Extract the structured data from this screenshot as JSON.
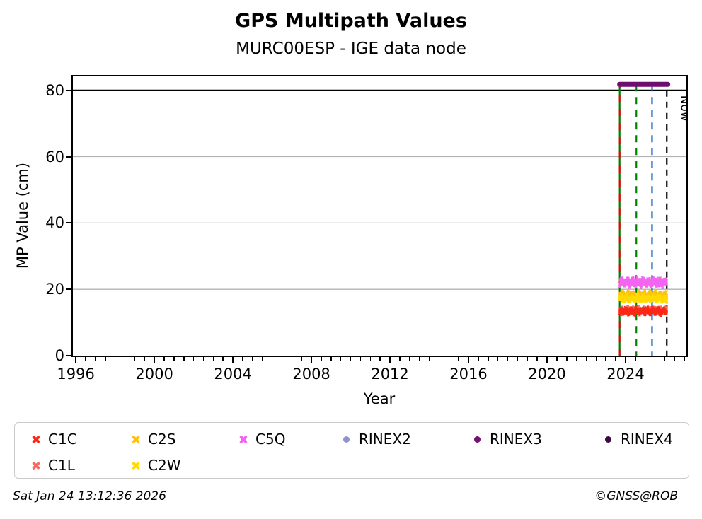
{
  "header": {
    "title": "GPS Multipath Values",
    "subtitle": "MURC00ESP - IGE data node"
  },
  "chart_data": {
    "type": "scatter",
    "title": "GPS Multipath Values",
    "subtitle": "MURC00ESP - IGE data node",
    "xlabel": "Year",
    "ylabel": "MP Value (cm)",
    "xlim": [
      1995.85,
      2027.1
    ],
    "ylim": [
      0,
      84.2
    ],
    "x_major_ticks": [
      1996,
      2000,
      2004,
      2008,
      2012,
      2016,
      2020,
      2024
    ],
    "x_minor_step": 0.5,
    "y_ticks": [
      0,
      20,
      40,
      60,
      80
    ],
    "grid_values": [
      20,
      40,
      60
    ],
    "grid_color": "#b3b3b3",
    "clip_line_value": 80,
    "legend_position": "below",
    "series": [
      {
        "name": "C1L",
        "color": "#fc685b",
        "marker": "x",
        "x_start": 2023.7,
        "x_end": 2026.1,
        "y_center": 13.8,
        "y_spread": 0.9,
        "n": 420,
        "seed": 11
      },
      {
        "name": "C1C",
        "color": "#fb2818",
        "marker": "x",
        "x_start": 2023.7,
        "x_end": 2026.1,
        "y_center": 13.4,
        "y_spread": 1.1,
        "n": 520,
        "seed": 7
      },
      {
        "name": "C2S",
        "color": "#fec10d",
        "marker": "x",
        "x_start": 2023.7,
        "x_end": 2026.1,
        "y_center": 18.3,
        "y_spread": 1.1,
        "n": 520,
        "seed": 23
      },
      {
        "name": "C2W",
        "color": "#ffd900",
        "marker": "x",
        "x_start": 2023.7,
        "x_end": 2026.1,
        "y_center": 17.2,
        "y_spread": 1.1,
        "n": 520,
        "seed": 31
      },
      {
        "name": "C5Q",
        "color": "#f464f0",
        "marker": "x",
        "x_start": 2023.7,
        "x_end": 2026.1,
        "y_center": 22.1,
        "y_spread": 1.4,
        "n": 520,
        "seed": 43
      },
      {
        "name": "RINEX3",
        "type": "bar-line",
        "color": "#6e0d6e",
        "x_start": 2023.7,
        "x_end": 2026.15,
        "y_value": 81.8
      }
    ],
    "no_data_series": [
      "RINEX2",
      "RINEX4"
    ],
    "event_lines": [
      {
        "year": 2023.7,
        "color": "#007a00",
        "style": "solid",
        "y_top": 81.8,
        "overlay_color": "#e10600",
        "overlay_dash": "10 10"
      },
      {
        "year": 2024.55,
        "color": "#008000",
        "style": "dashed",
        "dash": "10 8",
        "y_top": 81.8
      },
      {
        "year": 2025.35,
        "color": "#1565c0",
        "style": "dashed",
        "dash": "10 8",
        "y_top": 81.8
      }
    ],
    "now_line": {
      "year": 2026.1,
      "label": "Now",
      "color": "#000000",
      "dash": "9 7",
      "y_top": 80
    }
  },
  "legend": {
    "items": [
      {
        "label": "C1C",
        "marker": "x",
        "color": "#fb2818",
        "row": 0,
        "col": 0
      },
      {
        "label": "C2S",
        "marker": "x",
        "color": "#fec10d",
        "row": 0,
        "col": 1
      },
      {
        "label": "C5Q",
        "marker": "x",
        "color": "#f464f0",
        "row": 0,
        "col": 2
      },
      {
        "label": "RINEX2",
        "marker": "dot",
        "color": "#9292cd",
        "row": 0,
        "col": 3
      },
      {
        "label": "RINEX3",
        "marker": "dot",
        "color": "#721272",
        "row": 0,
        "col": 4
      },
      {
        "label": "RINEX4",
        "marker": "dot",
        "color": "#390b42",
        "row": 0,
        "col": 5
      },
      {
        "label": "C1L",
        "marker": "x",
        "color": "#fc685b",
        "row": 1,
        "col": 0
      },
      {
        "label": "C2W",
        "marker": "x",
        "color": "#ffd900",
        "row": 1,
        "col": 1
      }
    ]
  },
  "footer": {
    "timestamp": "Sat Jan 24 13:12:36 2026",
    "copyright": "©GNSS@ROB"
  }
}
